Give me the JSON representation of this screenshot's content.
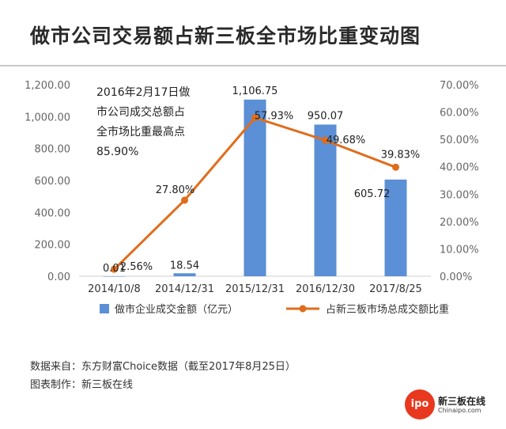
{
  "title": "做市公司交易额占新三板全市场比重变动图",
  "annotation": [
    "2016年2月17日做",
    "市公司成交总额占",
    "全市场比重最高点",
    "85.90%"
  ],
  "source_line": "数据来自：东方财富Choice数据（截至2017年8月25日）",
  "maker_line": "图表制作：新三板在线",
  "logo": {
    "badge": "ipo",
    "name": "新三板在线",
    "sub": "Chinaipo.com"
  },
  "colors": {
    "bar": "#5b8fd6",
    "line": "#e06d1c",
    "axis_text": "#666666"
  },
  "chart_data": {
    "type": "bar",
    "categories": [
      "2014/10/8",
      "2014/12/31",
      "2015/12/31",
      "2016/12/30",
      "2017/8/25"
    ],
    "series": [
      {
        "name": "做市企业成交金额（亿元）",
        "type": "bar",
        "axis": "left",
        "values": [
          0.01,
          18.54,
          1106.75,
          950.07,
          605.72
        ],
        "labels": [
          "0.01",
          "18.54",
          "1,106.75",
          "950.07",
          "605.72"
        ]
      },
      {
        "name": "占新三板市场总成交额比重",
        "type": "line",
        "axis": "right",
        "values": [
          2.56,
          27.8,
          57.93,
          49.68,
          39.83
        ],
        "labels": [
          "2.56%",
          "27.80%",
          "57.93%",
          "49.68%",
          "39.83%"
        ]
      }
    ],
    "left_axis": {
      "ylim": [
        0,
        1200
      ],
      "ticks": [
        "0.00",
        "200.00",
        "400.00",
        "600.00",
        "800.00",
        "1,000.00",
        "1,200.00"
      ]
    },
    "right_axis": {
      "ylim": [
        0,
        70
      ],
      "ticks": [
        "0.00%",
        "10.00%",
        "20.00%",
        "30.00%",
        "40.00%",
        "50.00%",
        "60.00%",
        "70.00%"
      ]
    },
    "legend_position": "bottom"
  }
}
